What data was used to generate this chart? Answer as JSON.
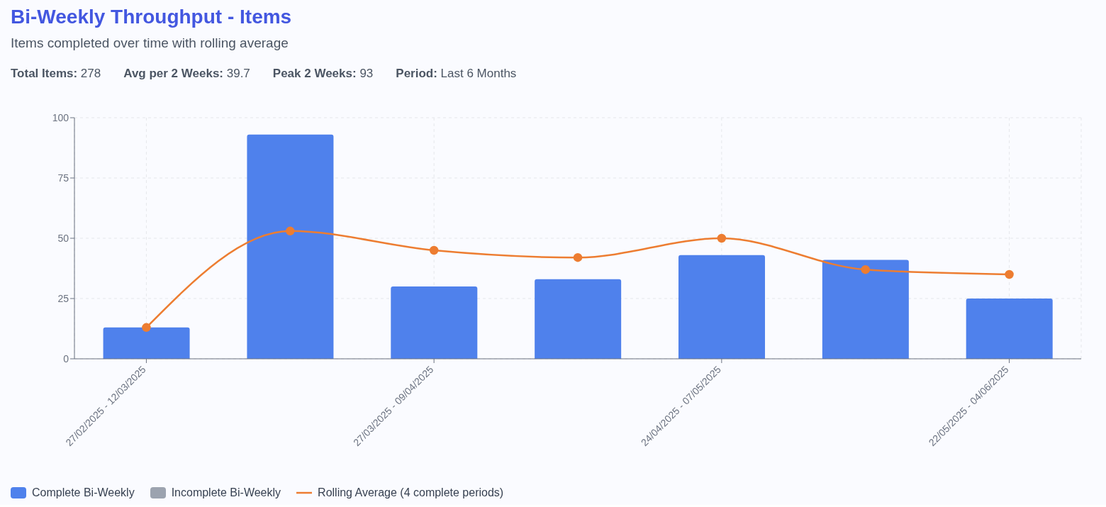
{
  "chart_data": {
    "type": "bar",
    "title": "Bi-Weekly Throughput - Items",
    "subtitle": "Items completed over time with rolling average",
    "annotations": [
      "Total Items: 278",
      "Avg per 2 Weeks: 39.7",
      "Peak 2 Weeks: 93",
      "Period: Last 6 Months"
    ],
    "categories": [
      "27/02/2025 - 12/03/2025",
      null,
      "27/03/2025 - 09/04/2025",
      null,
      "24/04/2025 - 07/05/2025",
      null,
      "22/05/2025 - 04/06/2025"
    ],
    "series": [
      {
        "name": "Complete Bi-Weekly",
        "color": "#4f81ec",
        "values": [
          13,
          93,
          30,
          33,
          43,
          41,
          25
        ]
      },
      {
        "name": "Incomplete Bi-Weekly",
        "color": "#9ca3af",
        "values": [
          null,
          null,
          null,
          null,
          null,
          null,
          null
        ]
      },
      {
        "name": "Rolling Average (4 complete periods)",
        "type": "line",
        "color": "#ed7d31",
        "values": [
          13,
          53,
          45,
          42,
          50,
          37,
          35
        ]
      }
    ],
    "ylim": [
      0,
      100
    ],
    "yticks": [
      0,
      25,
      50,
      75,
      100
    ],
    "grid": true,
    "legend": "bottom left",
    "marker": "circle",
    "line_style": "solid"
  }
}
